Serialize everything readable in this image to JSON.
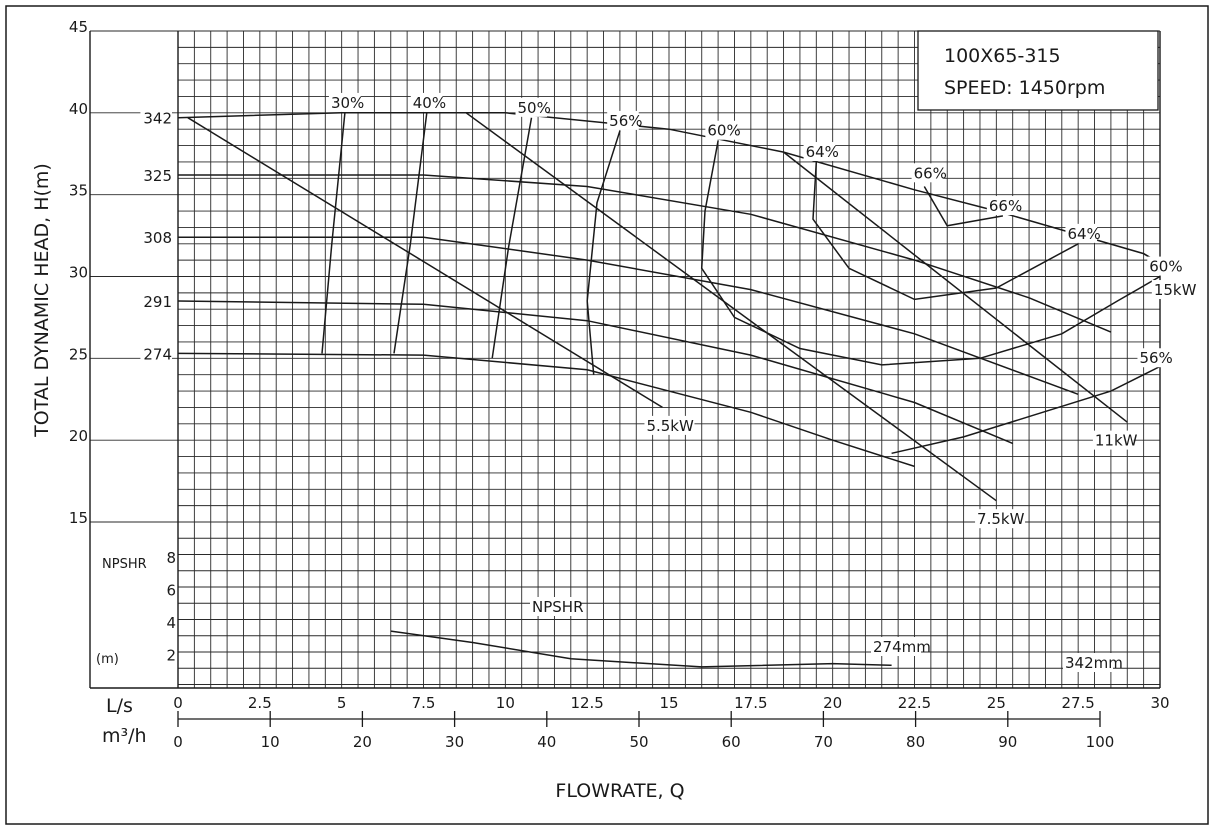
{
  "chart_data": {
    "type": "line",
    "model": "100X65-315",
    "speed": "SPEED: 1450rpm",
    "ylabel": "TOTAL DYNAMIC HEAD, H(m)",
    "xlabel": "FLOWRATE, Q",
    "head_yticks": [
      "15",
      "20",
      "25",
      "30",
      "35",
      "40",
      "45"
    ],
    "ylim": [
      15,
      45
    ],
    "x_unit_ls": "L/s",
    "x_unit_m3h": "m³/h",
    "x_ls_ticks": [
      "0",
      "2.5",
      "5",
      "7.5",
      "10",
      "12.5",
      "15",
      "17.5",
      "20",
      "22.5",
      "25",
      "27.5",
      "30"
    ],
    "x_m3h_ticks": [
      "0",
      "10",
      "20",
      "30",
      "40",
      "50",
      "60",
      "70",
      "80",
      "90",
      "100"
    ],
    "xlim_ls": [
      0,
      30
    ],
    "npshr_axis_label": "NPSHR",
    "npshr_unit": "(m)",
    "npshr_yticks": [
      "2",
      "4",
      "6",
      "8"
    ],
    "impeller_curves": [
      {
        "name": "342",
        "points": [
          [
            0,
            39.7
          ],
          [
            5,
            40.0
          ],
          [
            10,
            40.0
          ],
          [
            15,
            39.0
          ],
          [
            18.5,
            37.6
          ],
          [
            22.5,
            35.3
          ],
          [
            25,
            34.0
          ],
          [
            29.5,
            31.4
          ],
          [
            30,
            30.8
          ]
        ]
      },
      {
        "name": "325",
        "points": [
          [
            0,
            36.2
          ],
          [
            7.5,
            36.2
          ],
          [
            12.5,
            35.5
          ],
          [
            17.5,
            33.8
          ],
          [
            22.5,
            31.0
          ],
          [
            26,
            28.7
          ],
          [
            28.5,
            26.6
          ]
        ]
      },
      {
        "name": "308",
        "points": [
          [
            0,
            32.4
          ],
          [
            7.5,
            32.4
          ],
          [
            12.5,
            31.0
          ],
          [
            17.5,
            29.2
          ],
          [
            22.5,
            26.5
          ],
          [
            27.5,
            22.8
          ]
        ]
      },
      {
        "name": "291",
        "points": [
          [
            0,
            28.5
          ],
          [
            7.5,
            28.3
          ],
          [
            12.5,
            27.3
          ],
          [
            17.5,
            25.2
          ],
          [
            22.5,
            22.3
          ],
          [
            25.5,
            19.8
          ]
        ]
      },
      {
        "name": "274",
        "points": [
          [
            0,
            25.3
          ],
          [
            7.5,
            25.2
          ],
          [
            12.5,
            24.3
          ],
          [
            17.5,
            21.7
          ],
          [
            20,
            20.0
          ],
          [
            22.5,
            18.4
          ]
        ]
      }
    ],
    "efficiency_curves": [
      {
        "name": "30%",
        "points": [
          [
            4.4,
            25.3
          ],
          [
            4.7,
            32.0
          ],
          [
            5.1,
            40.0
          ]
        ]
      },
      {
        "name": "40%",
        "points": [
          [
            6.6,
            25.3
          ],
          [
            7.1,
            32.0
          ],
          [
            7.6,
            40.0
          ]
        ]
      },
      {
        "name": "50%",
        "points": [
          [
            9.6,
            25.0
          ],
          [
            10.1,
            31.8
          ],
          [
            10.8,
            39.7
          ]
        ]
      },
      {
        "name": "56%",
        "points": [
          [
            12.7,
            24.0
          ],
          [
            12.5,
            28.5
          ],
          [
            12.8,
            34.5
          ],
          [
            13.5,
            38.9
          ]
        ]
      },
      {
        "name": "60%",
        "points": [
          [
            16.5,
            38.3
          ],
          [
            16.1,
            34.0
          ],
          [
            16.0,
            30.5
          ],
          [
            17.0,
            27.5
          ],
          [
            19.0,
            25.6
          ],
          [
            21.5,
            24.6
          ],
          [
            24.5,
            25.0
          ],
          [
            27,
            26.5
          ],
          [
            28.7,
            28.5
          ],
          [
            30,
            30.0
          ]
        ]
      },
      {
        "name": "64%",
        "points": [
          [
            19.5,
            37.0
          ],
          [
            19.4,
            33.5
          ],
          [
            20.5,
            30.5
          ],
          [
            22.5,
            28.6
          ],
          [
            25,
            29.3
          ],
          [
            27.5,
            32.0
          ]
        ]
      },
      {
        "name": "66%",
        "points": [
          [
            22.8,
            35.5
          ],
          [
            23.5,
            33.1
          ],
          [
            25.2,
            33.7
          ]
        ]
      },
      {
        "name": "56%",
        "points": [
          [
            21.8,
            19.2
          ],
          [
            24,
            20.2
          ],
          [
            28.5,
            23.0
          ],
          [
            30,
            24.5
          ]
        ]
      }
    ],
    "efficiency_labels": [
      {
        "text": "30%",
        "x": 5.1,
        "y": 40.3
      },
      {
        "text": "40%",
        "x": 7.6,
        "y": 40.3
      },
      {
        "text": "50%",
        "x": 10.8,
        "y": 40.0
      },
      {
        "text": "56%",
        "x": 13.6,
        "y": 39.2
      },
      {
        "text": "60%",
        "x": 16.6,
        "y": 38.6
      },
      {
        "text": "64%",
        "x": 19.6,
        "y": 37.3
      },
      {
        "text": "66%",
        "x": 22.9,
        "y": 36.0
      },
      {
        "text": "66%",
        "x": 25.2,
        "y": 34.0
      },
      {
        "text": "64%",
        "x": 27.6,
        "y": 32.3
      },
      {
        "text": "60%",
        "x": 30.1,
        "y": 30.3
      },
      {
        "text": "56%",
        "x": 29.8,
        "y": 24.7
      }
    ],
    "power_curves": [
      {
        "name": "5.5kW",
        "points": [
          [
            0.3,
            39.7
          ],
          [
            14.8,
            22.0
          ]
        ]
      },
      {
        "name": "7.5kW",
        "points": [
          [
            8.8,
            40.0
          ],
          [
            25,
            16.3
          ]
        ]
      },
      {
        "name": "11kW",
        "points": [
          [
            18.5,
            37.6
          ],
          [
            29,
            21.1
          ]
        ]
      },
      {
        "name": "15kW",
        "points": [
          [
            29.5,
            31.4
          ],
          [
            30,
            30.8
          ]
        ]
      }
    ],
    "power_labels": [
      {
        "text": "5.5kW",
        "x": 14.8,
        "y": 21.3
      },
      {
        "text": "7.5kW",
        "x": 24.9,
        "y": 15.6
      },
      {
        "text": "11kW",
        "x": 28.5,
        "y": 20.4
      },
      {
        "text": "15kW",
        "x": 30.3,
        "y": 29.6
      }
    ],
    "npshr_curve": {
      "name": "NPSHR",
      "points": [
        [
          6.5,
          3.5
        ],
        [
          9,
          2.8
        ],
        [
          12,
          1.8
        ],
        [
          16,
          1.3
        ],
        [
          20,
          1.5
        ],
        [
          21.8,
          1.4
        ]
      ]
    },
    "npshr_label": "NPSHR",
    "npshr_mm_labels": [
      "274mm",
      "342mm"
    ]
  }
}
